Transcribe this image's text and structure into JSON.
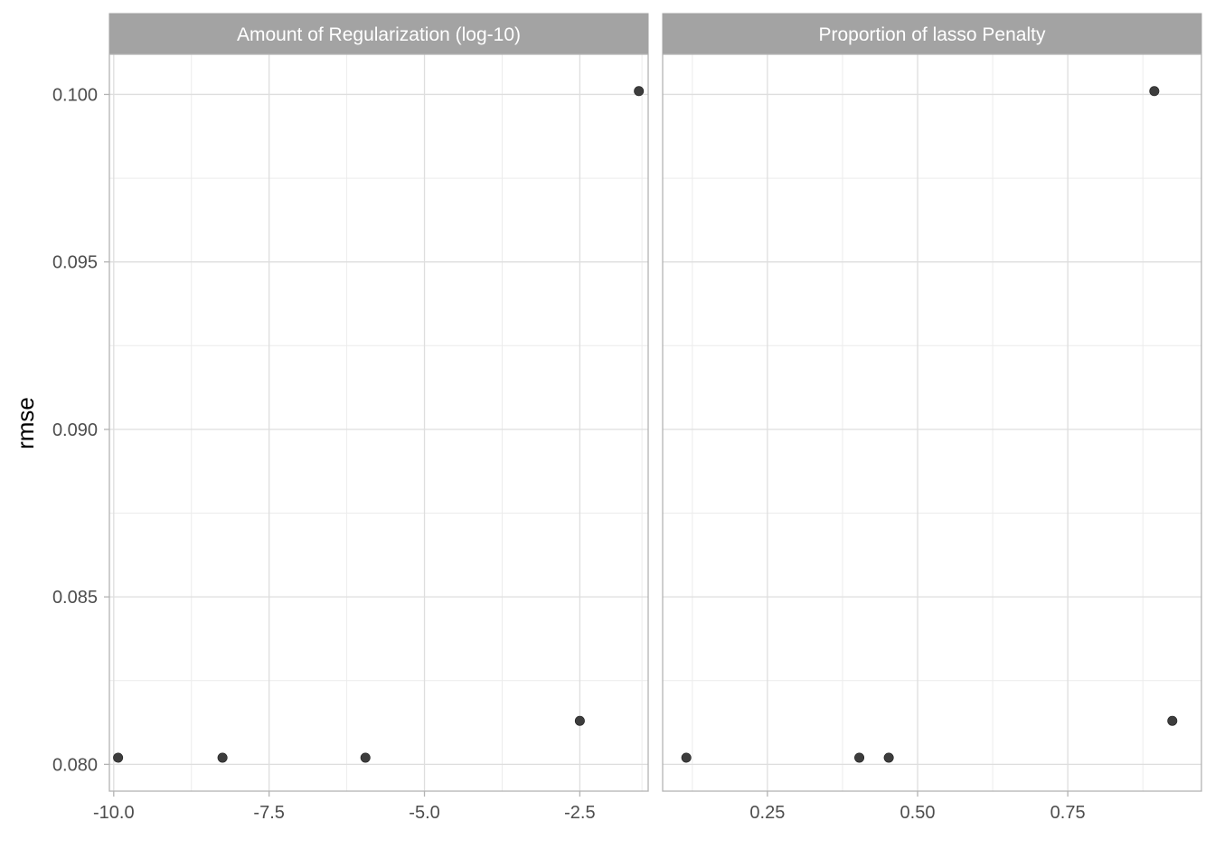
{
  "chart_data": {
    "type": "scatter",
    "y_label": "rmse",
    "y_range": [
      0.0792,
      0.1012
    ],
    "y_ticks": [
      "0.080",
      "0.085",
      "0.090",
      "0.095",
      "0.100"
    ],
    "y_tick_values": [
      0.08,
      0.085,
      0.09,
      0.095,
      0.1
    ],
    "y_minor_ticks": [
      0.0825,
      0.0875,
      0.0925,
      0.0975
    ],
    "grid": true,
    "point_color": "#333333",
    "panels": [
      {
        "strip_label": "Amount of Regularization (log-10)",
        "x_range": [
          -10.07,
          -1.4
        ],
        "x_ticks": [
          "-10.0",
          "-7.5",
          "-5.0",
          "-2.5"
        ],
        "x_tick_values": [
          -10.0,
          -7.5,
          -5.0,
          -2.5
        ],
        "x_minor_ticks": [
          -8.75,
          -6.25,
          -3.75,
          -1.5
        ],
        "points": [
          {
            "x": -9.93,
            "y": 0.0802
          },
          {
            "x": -8.25,
            "y": 0.0802
          },
          {
            "x": -5.95,
            "y": 0.0802
          },
          {
            "x": -2.5,
            "y": 0.0813
          },
          {
            "x": -1.55,
            "y": 0.1001
          }
        ]
      },
      {
        "strip_label": "Proportion of lasso Penalty",
        "x_range": [
          0.0756,
          0.9725
        ],
        "x_ticks": [
          "0.25",
          "0.50",
          "0.75"
        ],
        "x_tick_values": [
          0.25,
          0.5,
          0.75
        ],
        "x_minor_ticks": [
          0.125,
          0.375,
          0.625,
          0.875
        ],
        "points": [
          {
            "x": 0.115,
            "y": 0.0802
          },
          {
            "x": 0.403,
            "y": 0.0802
          },
          {
            "x": 0.452,
            "y": 0.0802
          },
          {
            "x": 0.894,
            "y": 0.1001
          },
          {
            "x": 0.924,
            "y": 0.0813
          }
        ]
      }
    ]
  }
}
